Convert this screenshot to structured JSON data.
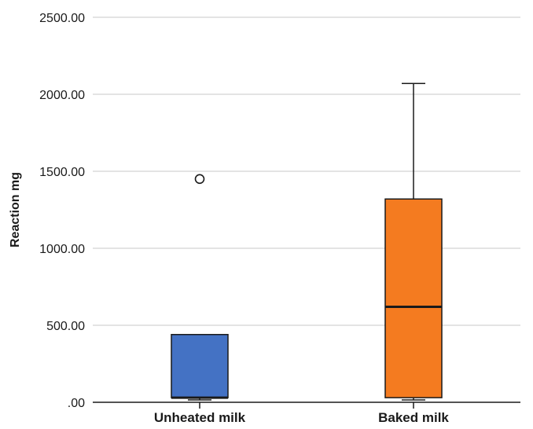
{
  "chart_data": {
    "type": "boxplot",
    "title": "",
    "xlabel": "",
    "ylabel": "Reaction mg",
    "ylim": [
      0,
      2500
    ],
    "yticks": [
      0,
      500,
      1000,
      1500,
      2000,
      2500
    ],
    "ytick_labels": [
      ".00",
      "500.00",
      "1000.00",
      "1500.00",
      "2000.00",
      "2500.00"
    ],
    "grid": true,
    "legend": "none",
    "categories": [
      "Unheated milk",
      "Baked milk"
    ],
    "series": [
      {
        "category": "Unheated milk",
        "color": "#4472c4",
        "min": 15,
        "q1": 30,
        "median": 30,
        "q3": 440,
        "max": 440,
        "outliers": [
          1450
        ]
      },
      {
        "category": "Baked milk",
        "color": "#f47b20",
        "min": 15,
        "q1": 30,
        "median": 620,
        "q3": 1320,
        "max": 2070,
        "outliers": []
      }
    ]
  }
}
